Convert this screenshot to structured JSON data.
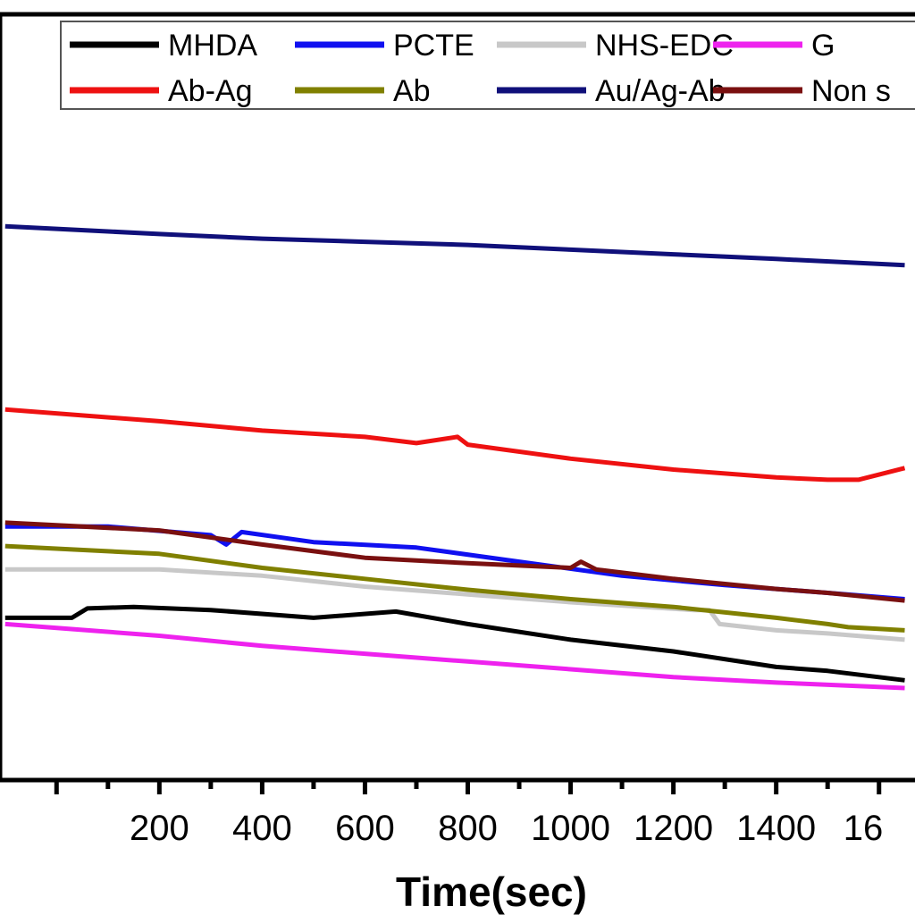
{
  "chart_data": {
    "type": "line",
    "title": "",
    "xlabel": "Time(sec)",
    "ylabel": "",
    "xlim": [
      -110,
      1670
    ],
    "ylim": [
      0,
      1000
    ],
    "x_ticks": [
      200,
      400,
      600,
      800,
      1000,
      1200,
      1400,
      "16"
    ],
    "grid": false,
    "legend_placement": "top",
    "series": [
      {
        "name": "MHDA",
        "color": "#000000",
        "x": [
          -100,
          30,
          60,
          150,
          300,
          500,
          660,
          800,
          1000,
          1200,
          1400,
          1500,
          1650
        ],
        "y": [
          208,
          208,
          220,
          222,
          218,
          208,
          216,
          200,
          180,
          165,
          145,
          140,
          128
        ]
      },
      {
        "name": "PCTE",
        "color": "#1010f0",
        "x": [
          -100,
          100,
          300,
          330,
          360,
          500,
          700,
          900,
          1100,
          1300,
          1500,
          1650
        ],
        "y": [
          325,
          325,
          314,
          302,
          318,
          305,
          298,
          280,
          262,
          250,
          240,
          232
        ]
      },
      {
        "name": "NHS-EDC",
        "color": "#c8c8c8",
        "x": [
          -100,
          200,
          400,
          600,
          800,
          1000,
          1240,
          1270,
          1290,
          1400,
          1500,
          1650
        ],
        "y": [
          270,
          270,
          262,
          248,
          238,
          228,
          218,
          218,
          200,
          192,
          188,
          180
        ]
      },
      {
        "name": "G",
        "color": "#ee22ee",
        "x": [
          -100,
          200,
          400,
          600,
          800,
          1000,
          1200,
          1400,
          1650
        ],
        "y": [
          200,
          185,
          172,
          162,
          152,
          142,
          132,
          125,
          118
        ]
      },
      {
        "name": "Ab-Ag",
        "color": "#ee1111",
        "x": [
          -100,
          200,
          400,
          600,
          700,
          780,
          800,
          1000,
          1200,
          1400,
          1500,
          1560,
          1650
        ],
        "y": [
          475,
          460,
          448,
          440,
          432,
          440,
          430,
          412,
          398,
          388,
          385,
          385,
          400
        ]
      },
      {
        "name": "Ab",
        "color": "#808000",
        "x": [
          -100,
          200,
          400,
          600,
          800,
          1000,
          1200,
          1400,
          1500,
          1540,
          1650
        ],
        "y": [
          300,
          290,
          272,
          258,
          244,
          232,
          222,
          208,
          200,
          196,
          192
        ]
      },
      {
        "name": "Au/Ag-Ab",
        "color": "#10107a",
        "x": [
          -100,
          200,
          400,
          600,
          800,
          1000,
          1200,
          1400,
          1650
        ],
        "y": [
          710,
          700,
          694,
          690,
          686,
          680,
          674,
          668,
          660
        ]
      },
      {
        "name": "Non s",
        "color": "#7a1010",
        "x": [
          -100,
          200,
          400,
          600,
          800,
          1000,
          1020,
          1050,
          1200,
          1400,
          1500,
          1650
        ],
        "y": [
          330,
          320,
          302,
          285,
          278,
          272,
          280,
          270,
          258,
          245,
          240,
          230
        ]
      }
    ]
  }
}
